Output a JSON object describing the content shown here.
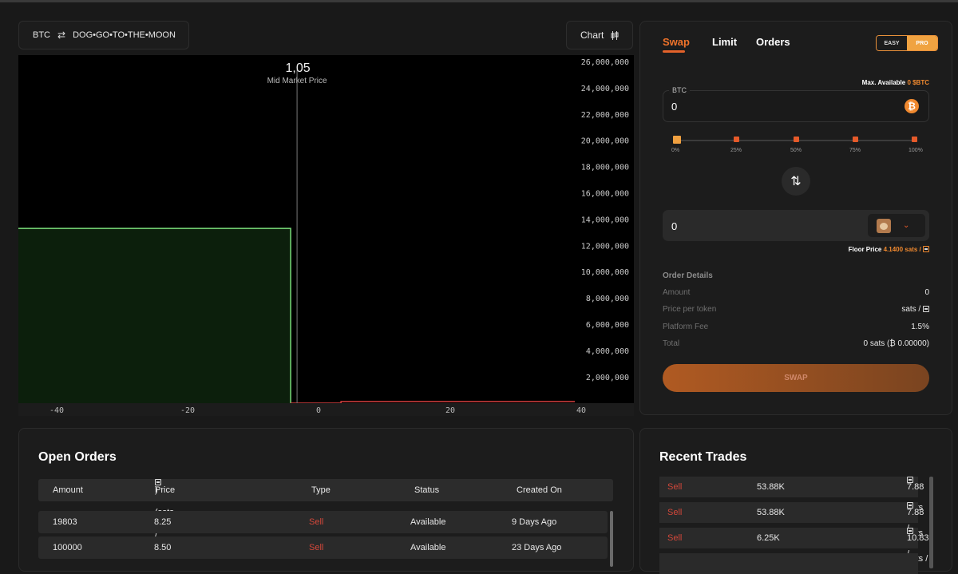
{
  "pair": {
    "base": "BTC",
    "swap_icon": "⇄",
    "quote": "DOG•GO•TO•THE•MOON"
  },
  "chart_button": {
    "label": "Chart",
    "icon": "candlestick-icon"
  },
  "chart_data": {
    "type": "area",
    "title": "1,05",
    "subtitle": "Mid Market Price",
    "x_ticks": [
      "-40",
      "-20",
      "0",
      "20",
      "40"
    ],
    "y_ticks": [
      "26,000,000",
      "24,000,000",
      "22,000,000",
      "20,000,000",
      "18,000,000",
      "16,000,000",
      "14,000,000",
      "12,000,000",
      "10,000,000",
      "8,000,000",
      "6,000,000",
      "4,000,000",
      "2,000,000"
    ],
    "xlim": [
      -46,
      48
    ],
    "ylim": [
      0,
      26500000
    ],
    "mid_price_x": 0,
    "series": [
      {
        "side": "bid",
        "color": "#7be07b",
        "fill": "#0c1f0c",
        "x": [
          -46,
          0
        ],
        "y": [
          13300000,
          13300000
        ]
      },
      {
        "side": "ask",
        "color": "#d94040",
        "x": [
          0,
          8.5,
          8.5,
          48
        ],
        "y": [
          0,
          0,
          120000,
          120000
        ]
      }
    ]
  },
  "swap_panel": {
    "tabs": [
      "Swap",
      "Limit",
      "Orders"
    ],
    "mode": {
      "easy": "EASY",
      "pro": "PRO"
    },
    "max_available_label": "Max. Available",
    "max_available_value": "0 $BTC",
    "btc_label": "BTC",
    "btc_value": "0",
    "btc_icon": "₿",
    "percent_labels": [
      "0%",
      "25%",
      "50%",
      "75%",
      "100%"
    ],
    "swap_direction_icon": "⇅",
    "token_value": "0",
    "floor_label": "Floor Price",
    "floor_value": "4.1400 sats /",
    "order_details_title": "Order Details",
    "details": [
      {
        "key": "Amount",
        "value": "0"
      },
      {
        "key": "Price per token",
        "value": "sats /"
      },
      {
        "key": "Platform Fee",
        "value": "1.5%"
      },
      {
        "key": "Total",
        "value": "0 sats (₿ 0.00000)"
      }
    ],
    "swap_button": "SWAP"
  },
  "open_orders": {
    "title": "Open Orders",
    "columns": [
      "Amount",
      "Price (sats /",
      "Type",
      "Status",
      "Created On"
    ],
    "price_suffix": ")",
    "rows": [
      {
        "amount": "19803",
        "price": "8.25",
        "type": "Sell",
        "status": "Available",
        "created": "9 Days Ago"
      },
      {
        "amount": "100000",
        "price": "8.50",
        "type": "Sell",
        "status": "Available",
        "created": "23 Days Ago"
      }
    ]
  },
  "recent_trades": {
    "title": "Recent Trades",
    "rows": [
      {
        "type": "Sell",
        "amount": "53.88K",
        "price": "7.88 sats /"
      },
      {
        "type": "Sell",
        "amount": "53.88K",
        "price": "7.88 sats /"
      },
      {
        "type": "Sell",
        "amount": "6.25K",
        "price": "10.83 sats /"
      }
    ]
  }
}
